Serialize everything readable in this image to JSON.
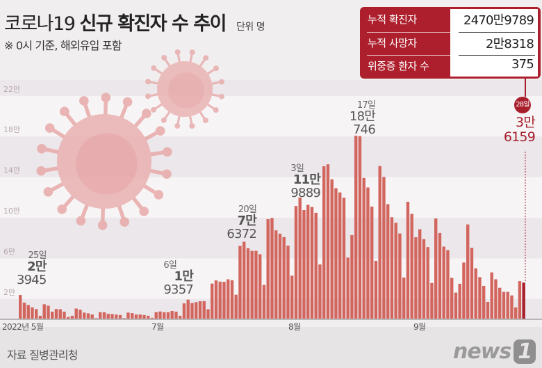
{
  "header": {
    "title_light": "코로나19",
    "title_bold": "신규 확진자 수 추이",
    "unit": "단위 명",
    "subtitle": "※ 0시 기준, 해외유입 포함"
  },
  "summary_table": [
    {
      "label": "누적 확진자",
      "value": "2470만9789"
    },
    {
      "label": "누적 사망자",
      "value": "2만8318"
    },
    {
      "label": "위중증 환자 수",
      "value": "375"
    }
  ],
  "latest": {
    "day": "28일",
    "value_line1": "3만",
    "value_line2": "6159"
  },
  "annotations": [
    {
      "day": "25일",
      "line1": "2만",
      "line2": "3945"
    },
    {
      "day": "6일",
      "line1": "1만",
      "line2": "9357"
    },
    {
      "day": "20일",
      "line1": "7만",
      "line2": "6372"
    },
    {
      "day": "3일",
      "line1": "11만",
      "line2": "9889"
    },
    {
      "day": "17일",
      "line1": "18만",
      "line2": "746"
    }
  ],
  "footer": {
    "source": "자료 질병관리청",
    "logo": "news1"
  },
  "colors": {
    "bar": "#d2665e",
    "bar_latest": "#a81f2c",
    "accent": "#ad1f2d"
  },
  "chart_data": {
    "type": "bar",
    "title": "코로나19 신규 확진자 수 추이",
    "unit": "명",
    "x_range": [
      "2022-05-25",
      "2022-09-28"
    ],
    "x_tick_labels": [
      "2022년 5월",
      "7월",
      "8월",
      "9월"
    ],
    "y_tick_labels": [
      "2만",
      "6만",
      "10만",
      "14만",
      "18만",
      "22만"
    ],
    "y_ticks": [
      20000,
      60000,
      100000,
      140000,
      180000,
      220000
    ],
    "ylim": [
      0,
      225000
    ],
    "grid": "alternating horizontal bands",
    "values": [
      23945,
      16400,
      14100,
      11700,
      10100,
      3500,
      14800,
      13400,
      7500,
      10100,
      9900,
      7500,
      2300,
      3500,
      10600,
      9400,
      6600,
      5900,
      4700,
      1200,
      7000,
      7000,
      5400,
      5200,
      4700,
      4200,
      1200,
      6600,
      6100,
      4700,
      4700,
      4200,
      3500,
      1500,
      7000,
      7700,
      7000,
      7000,
      8200,
      7500,
      3500,
      15700,
      19357,
      16000,
      16900,
      17800,
      17800,
      9900,
      35200,
      38300,
      37100,
      36900,
      39400,
      38500,
      24200,
      72300,
      76372,
      70000,
      67400,
      67400,
      64100,
      33800,
      98600,
      99800,
      87600,
      84300,
      81000,
      72500,
      43000,
      111500,
      119889,
      107500,
      112700,
      110600,
      104900,
      54000,
      150700,
      152600,
      137800,
      129100,
      124900,
      119700,
      60800,
      82900,
      180746,
      180300,
      139200,
      129800,
      111000,
      57500,
      150900,
      140100,
      113400,
      100500,
      95100,
      84500,
      41100,
      115700,
      103800,
      80800,
      88700,
      78900,
      71100,
      35700,
      99300,
      85000,
      71600,
      68100,
      40800,
      26300,
      35000,
      55900,
      93400,
      70400,
      50200,
      41500,
      32900,
      17100,
      46200,
      39400,
      31000,
      27000,
      27000,
      23500,
      11700,
      37600,
      36159
    ]
  }
}
